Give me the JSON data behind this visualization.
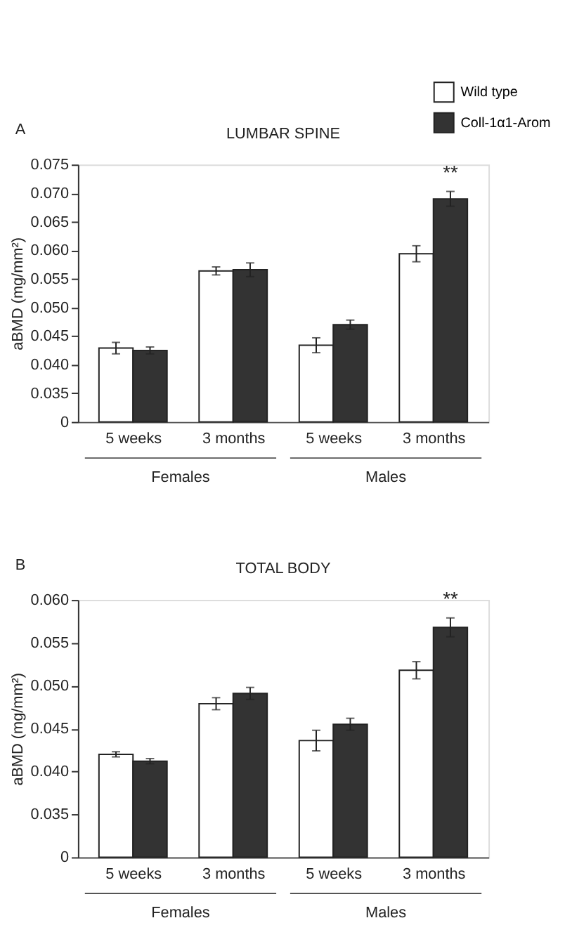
{
  "chart_data": [
    {
      "type": "bar",
      "title": "LUMBAR SPINE",
      "ylabel": "aBMD (mg/mm²)",
      "categories": [
        "5 weeks",
        "3 months",
        "5 weeks",
        "3 months"
      ],
      "series": [
        {
          "name": "Wild type",
          "color": "#ffffff",
          "values": [
            0.0429,
            0.0564,
            0.0434,
            0.0594
          ],
          "errors": [
            0.001,
            0.0007,
            0.0013,
            0.0014
          ]
        },
        {
          "name": "Coll-1α1-Arom",
          "color": "#333333",
          "values": [
            0.0425,
            0.0566,
            0.047,
            0.069
          ],
          "errors": [
            0.0006,
            0.0012,
            0.0008,
            0.0013
          ]
        }
      ],
      "ylim": [
        0.03,
        0.075
      ],
      "yticks": [
        {
          "value": 0.03,
          "label": "0"
        },
        {
          "value": 0.035,
          "label": "0.035"
        },
        {
          "value": 0.04,
          "label": "0.040"
        },
        {
          "value": 0.045,
          "label": "0.045"
        },
        {
          "value": 0.05,
          "label": "0.050"
        },
        {
          "value": 0.055,
          "label": "0.055"
        },
        {
          "value": 0.06,
          "label": "0.060"
        },
        {
          "value": 0.065,
          "label": "0.065"
        },
        {
          "value": 0.07,
          "label": "0.070"
        },
        {
          "value": 0.075,
          "label": "0.075"
        }
      ],
      "legend": "top right",
      "annotations": [
        "A",
        "**",
        "Females",
        "Males"
      ]
    },
    {
      "type": "bar",
      "title": "TOTAL BODY",
      "ylabel": "aBMD (mg/mm²)",
      "categories": [
        "5 weeks",
        "3 months",
        "5 weeks",
        "3 months"
      ],
      "series": [
        {
          "color": "#ffffff",
          "values": [
            0.042,
            0.0479,
            0.0436,
            0.0518
          ],
          "errors": [
            0.0003,
            0.0007,
            0.0012,
            0.001
          ]
        },
        {
          "color": "#333333",
          "values": [
            0.0412,
            0.0491,
            0.0455,
            0.0568
          ],
          "errors": [
            0.0003,
            0.0007,
            0.0007,
            0.0011
          ]
        }
      ],
      "ylim": [
        0.03,
        0.06
      ],
      "yticks": [
        {
          "value": 0.03,
          "label": "0"
        },
        {
          "value": 0.035,
          "label": "0.035"
        },
        {
          "value": 0.04,
          "label": "0.040"
        },
        {
          "value": 0.045,
          "label": "0.045"
        },
        {
          "value": 0.05,
          "label": "0.050"
        },
        {
          "value": 0.055,
          "label": "0.055"
        },
        {
          "value": 0.06,
          "label": "0.060"
        }
      ],
      "annotations": [
        "B",
        "**",
        "Females",
        "Males"
      ]
    }
  ]
}
